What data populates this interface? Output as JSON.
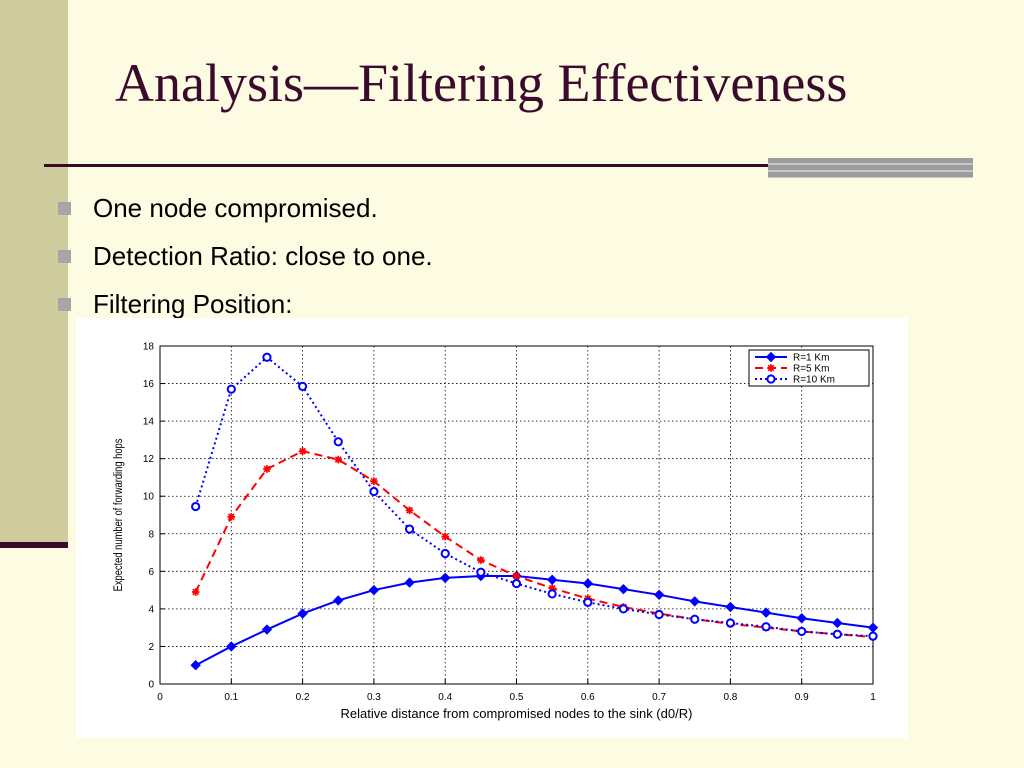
{
  "slide": {
    "title": "Analysis—Filtering Effectiveness",
    "bullets": [
      {
        "text": "One node compromised."
      },
      {
        "text": "Detection Ratio: close to one."
      },
      {
        "text": "Filtering Position:"
      }
    ]
  },
  "colors": {
    "background": "#fdfbe1",
    "band": "#cfcd9f",
    "title": "#3b0b2e",
    "series_blue": "#0000ff",
    "series_red": "#ff0000"
  },
  "chart_data": {
    "type": "line",
    "title": "",
    "xlabel": "Relative distance from compromised nodes to the sink (d0/R)",
    "ylabel": "Expected number of forwarding hops",
    "xlim": [
      0,
      1
    ],
    "ylim": [
      0,
      18
    ],
    "xticks": [
      0,
      0.1,
      0.2,
      0.3,
      0.4,
      0.5,
      0.6,
      0.7,
      0.8,
      0.9,
      1
    ],
    "yticks": [
      0,
      2,
      4,
      6,
      8,
      10,
      12,
      14,
      16,
      18
    ],
    "xtick_labels": [
      "0",
      "0.1",
      "0.2",
      "0.3",
      "0.4",
      "0.5",
      "0.6",
      "0.7",
      "0.8",
      "0.9",
      "1"
    ],
    "ytick_labels": [
      "0",
      "2",
      "4",
      "6",
      "8",
      "10",
      "12",
      "14",
      "16",
      "18"
    ],
    "grid": true,
    "legend_position": "top-right",
    "x": [
      0.05,
      0.1,
      0.15,
      0.2,
      0.25,
      0.3,
      0.35,
      0.4,
      0.45,
      0.5,
      0.55,
      0.6,
      0.65,
      0.7,
      0.75,
      0.8,
      0.85,
      0.9,
      0.95,
      1.0
    ],
    "series": [
      {
        "name": "R=1 Km",
        "color": "#0000ff",
        "line": "solid",
        "marker": "diamond",
        "values": [
          1.0,
          2.0,
          2.9,
          3.75,
          4.45,
          5.0,
          5.4,
          5.65,
          5.75,
          5.75,
          5.55,
          5.35,
          5.05,
          4.75,
          4.4,
          4.1,
          3.8,
          3.5,
          3.25,
          3.0
        ]
      },
      {
        "name": "R=5 Km",
        "color": "#ff0000",
        "line": "dashed",
        "marker": "star",
        "values": [
          4.9,
          8.9,
          11.45,
          12.4,
          11.95,
          10.8,
          9.25,
          7.85,
          6.6,
          5.75,
          5.1,
          4.55,
          4.1,
          3.75,
          3.45,
          3.2,
          3.0,
          2.8,
          2.65,
          2.5
        ]
      },
      {
        "name": "R=10 Km",
        "color": "#0000ff",
        "line": "dotted",
        "marker": "circle",
        "values": [
          9.45,
          15.7,
          17.4,
          15.85,
          12.9,
          10.25,
          8.25,
          6.95,
          5.95,
          5.35,
          4.8,
          4.35,
          4.0,
          3.7,
          3.45,
          3.25,
          3.05,
          2.8,
          2.65,
          2.55
        ]
      }
    ]
  }
}
